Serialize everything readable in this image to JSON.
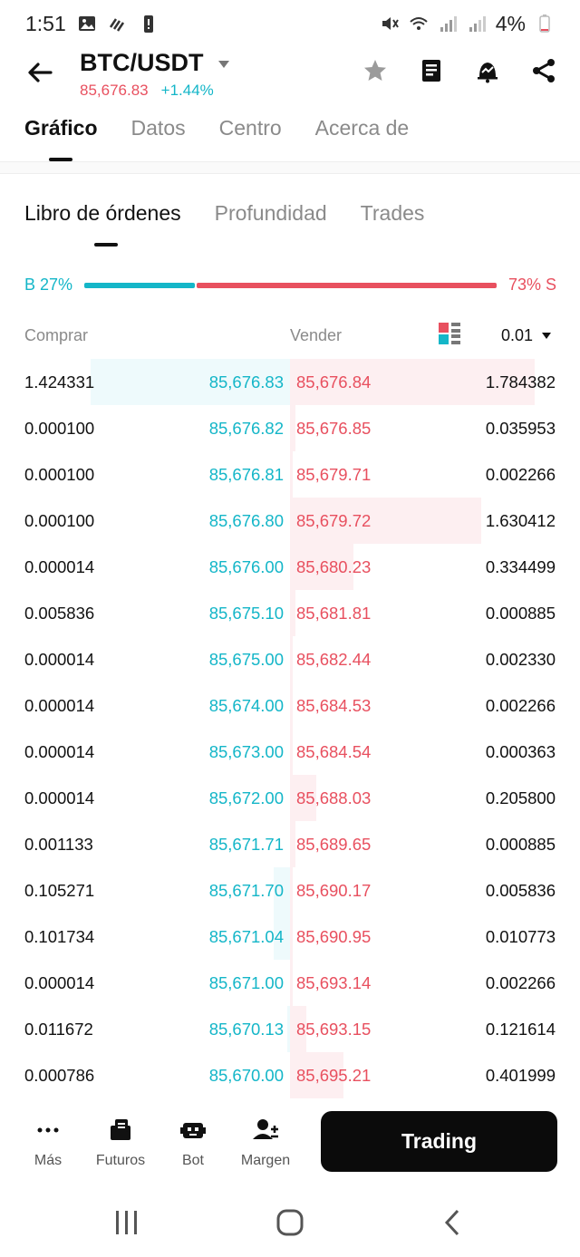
{
  "status": {
    "time": "1:51",
    "battery": "4%"
  },
  "header": {
    "pair": "BTC/USDT",
    "price": "85,676.83",
    "change": "+1.44%"
  },
  "top_tabs": [
    {
      "label": "Gráfico",
      "active": true
    },
    {
      "label": "Datos",
      "active": false
    },
    {
      "label": "Centro",
      "active": false
    },
    {
      "label": "Acerca de",
      "active": false
    }
  ],
  "sub_tabs": [
    {
      "label": "Libro de órdenes",
      "active": true
    },
    {
      "label": "Profundidad",
      "active": false
    },
    {
      "label": "Trades",
      "active": false
    }
  ],
  "ratio": {
    "buy_label": "B 27%",
    "sell_label": "S 73%",
    "sell_label_display": "73% S",
    "buy_fraction": 0.27,
    "sell_fraction": 0.73
  },
  "columns": {
    "buy": "Comprar",
    "sell": "Vender",
    "precision": "0.01"
  },
  "order_book": [
    {
      "bid_qty": "1.424331",
      "bid_price": "85,676.83",
      "ask_price": "85,676.84",
      "ask_qty": "1.784382",
      "bid_depth": 0.75,
      "ask_depth": 0.92
    },
    {
      "bid_qty": "0.000100",
      "bid_price": "85,676.82",
      "ask_price": "85,676.85",
      "ask_qty": "0.035953",
      "bid_depth": 0.0,
      "ask_depth": 0.02
    },
    {
      "bid_qty": "0.000100",
      "bid_price": "85,676.81",
      "ask_price": "85,679.71",
      "ask_qty": "0.002266",
      "bid_depth": 0.0,
      "ask_depth": 0.01
    },
    {
      "bid_qty": "0.000100",
      "bid_price": "85,676.80",
      "ask_price": "85,679.72",
      "ask_qty": "1.630412",
      "bid_depth": 0.0,
      "ask_depth": 0.72
    },
    {
      "bid_qty": "0.000014",
      "bid_price": "85,676.00",
      "ask_price": "85,680.23",
      "ask_qty": "0.334499",
      "bid_depth": 0.0,
      "ask_depth": 0.24
    },
    {
      "bid_qty": "0.005836",
      "bid_price": "85,675.10",
      "ask_price": "85,681.81",
      "ask_qty": "0.000885",
      "bid_depth": 0.0,
      "ask_depth": 0.02
    },
    {
      "bid_qty": "0.000014",
      "bid_price": "85,675.00",
      "ask_price": "85,682.44",
      "ask_qty": "0.002330",
      "bid_depth": 0.0,
      "ask_depth": 0.01
    },
    {
      "bid_qty": "0.000014",
      "bid_price": "85,674.00",
      "ask_price": "85,684.53",
      "ask_qty": "0.002266",
      "bid_depth": 0.0,
      "ask_depth": 0.01
    },
    {
      "bid_qty": "0.000014",
      "bid_price": "85,673.00",
      "ask_price": "85,684.54",
      "ask_qty": "0.000363",
      "bid_depth": 0.0,
      "ask_depth": 0.01
    },
    {
      "bid_qty": "0.000014",
      "bid_price": "85,672.00",
      "ask_price": "85,688.03",
      "ask_qty": "0.205800",
      "bid_depth": 0.0,
      "ask_depth": 0.1
    },
    {
      "bid_qty": "0.001133",
      "bid_price": "85,671.71",
      "ask_price": "85,689.65",
      "ask_qty": "0.000885",
      "bid_depth": 0.0,
      "ask_depth": 0.02
    },
    {
      "bid_qty": "0.105271",
      "bid_price": "85,671.70",
      "ask_price": "85,690.17",
      "ask_qty": "0.005836",
      "bid_depth": 0.06,
      "ask_depth": 0.01
    },
    {
      "bid_qty": "0.101734",
      "bid_price": "85,671.04",
      "ask_price": "85,690.95",
      "ask_qty": "0.010773",
      "bid_depth": 0.06,
      "ask_depth": 0.01
    },
    {
      "bid_qty": "0.000014",
      "bid_price": "85,671.00",
      "ask_price": "85,693.14",
      "ask_qty": "0.002266",
      "bid_depth": 0.0,
      "ask_depth": 0.01
    },
    {
      "bid_qty": "0.011672",
      "bid_price": "85,670.13",
      "ask_price": "85,693.15",
      "ask_qty": "0.121614",
      "bid_depth": 0.01,
      "ask_depth": 0.06
    },
    {
      "bid_qty": "0.000786",
      "bid_price": "85,670.00",
      "ask_price": "85,695.21",
      "ask_qty": "0.401999",
      "bid_depth": 0.0,
      "ask_depth": 0.2
    }
  ],
  "bottom_nav": [
    {
      "label": "Más",
      "icon": "more-dots-icon"
    },
    {
      "label": "Futuros",
      "icon": "futures-icon"
    },
    {
      "label": "Bot",
      "icon": "bot-icon"
    },
    {
      "label": "Margen",
      "icon": "margin-icon"
    }
  ],
  "trade_button": "Trading",
  "colors": {
    "buy": "#14b6c8",
    "sell": "#e8505f",
    "buy_bg": "#eefafc",
    "sell_bg": "#fdeff1"
  }
}
